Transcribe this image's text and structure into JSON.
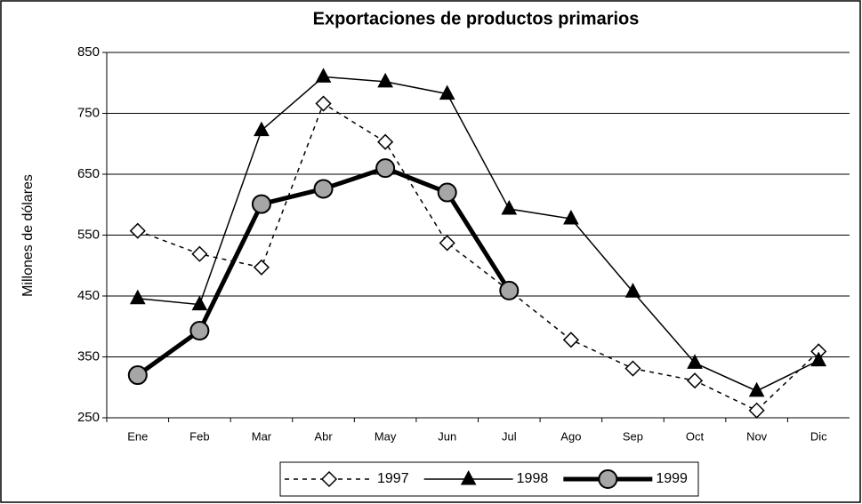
{
  "chart_data": {
    "type": "line",
    "title": "Exportaciones de productos primarios",
    "y_label": "Millones de dólares",
    "categories": [
      "Ene",
      "Feb",
      "Mar",
      "Abr",
      "May",
      "Jun",
      "Jul",
      "Ago",
      "Sep",
      "Oct",
      "Nov",
      "Dic"
    ],
    "series": [
      {
        "name": "1997",
        "color": "#000000",
        "values": [
          557,
          519,
          497,
          766,
          703,
          537,
          459,
          378,
          331,
          311,
          262,
          359
        ]
      },
      {
        "name": "1998",
        "color": "#000000",
        "values": [
          446,
          436,
          722,
          810,
          802,
          782,
          593,
          577,
          457,
          340,
          294,
          344
        ]
      },
      {
        "name": "1999",
        "color": "#000000",
        "values": [
          320,
          393,
          601,
          626,
          660,
          620,
          459,
          null,
          null,
          null,
          null,
          null
        ]
      }
    ],
    "ylim": [
      250,
      850
    ],
    "yticks": [
      250,
      350,
      450,
      550,
      650,
      750,
      850
    ],
    "grid": true,
    "legend": "bottom"
  }
}
